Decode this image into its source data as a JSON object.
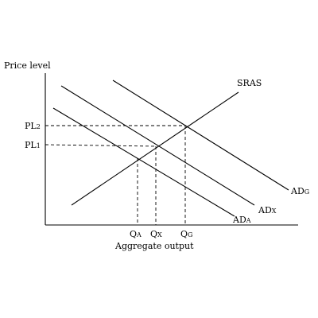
{
  "axes": {
    "y_label": "Price level",
    "x_label": "Aggregate output"
  },
  "curves": {
    "sras": "SRAS",
    "adg": {
      "main": "AD",
      "sub": "G"
    },
    "adx": {
      "main": "AD",
      "sub": "X"
    },
    "ada": {
      "main": "AD",
      "sub": "A"
    }
  },
  "price_levels": {
    "pl2": {
      "main": "PL",
      "sub": "2"
    },
    "pl1": {
      "main": "PL",
      "sub": "1"
    }
  },
  "quantities": {
    "qa": {
      "main": "Q",
      "sub": "A"
    },
    "qx": {
      "main": "Q",
      "sub": "X"
    },
    "qg": {
      "main": "Q",
      "sub": "G"
    }
  }
}
